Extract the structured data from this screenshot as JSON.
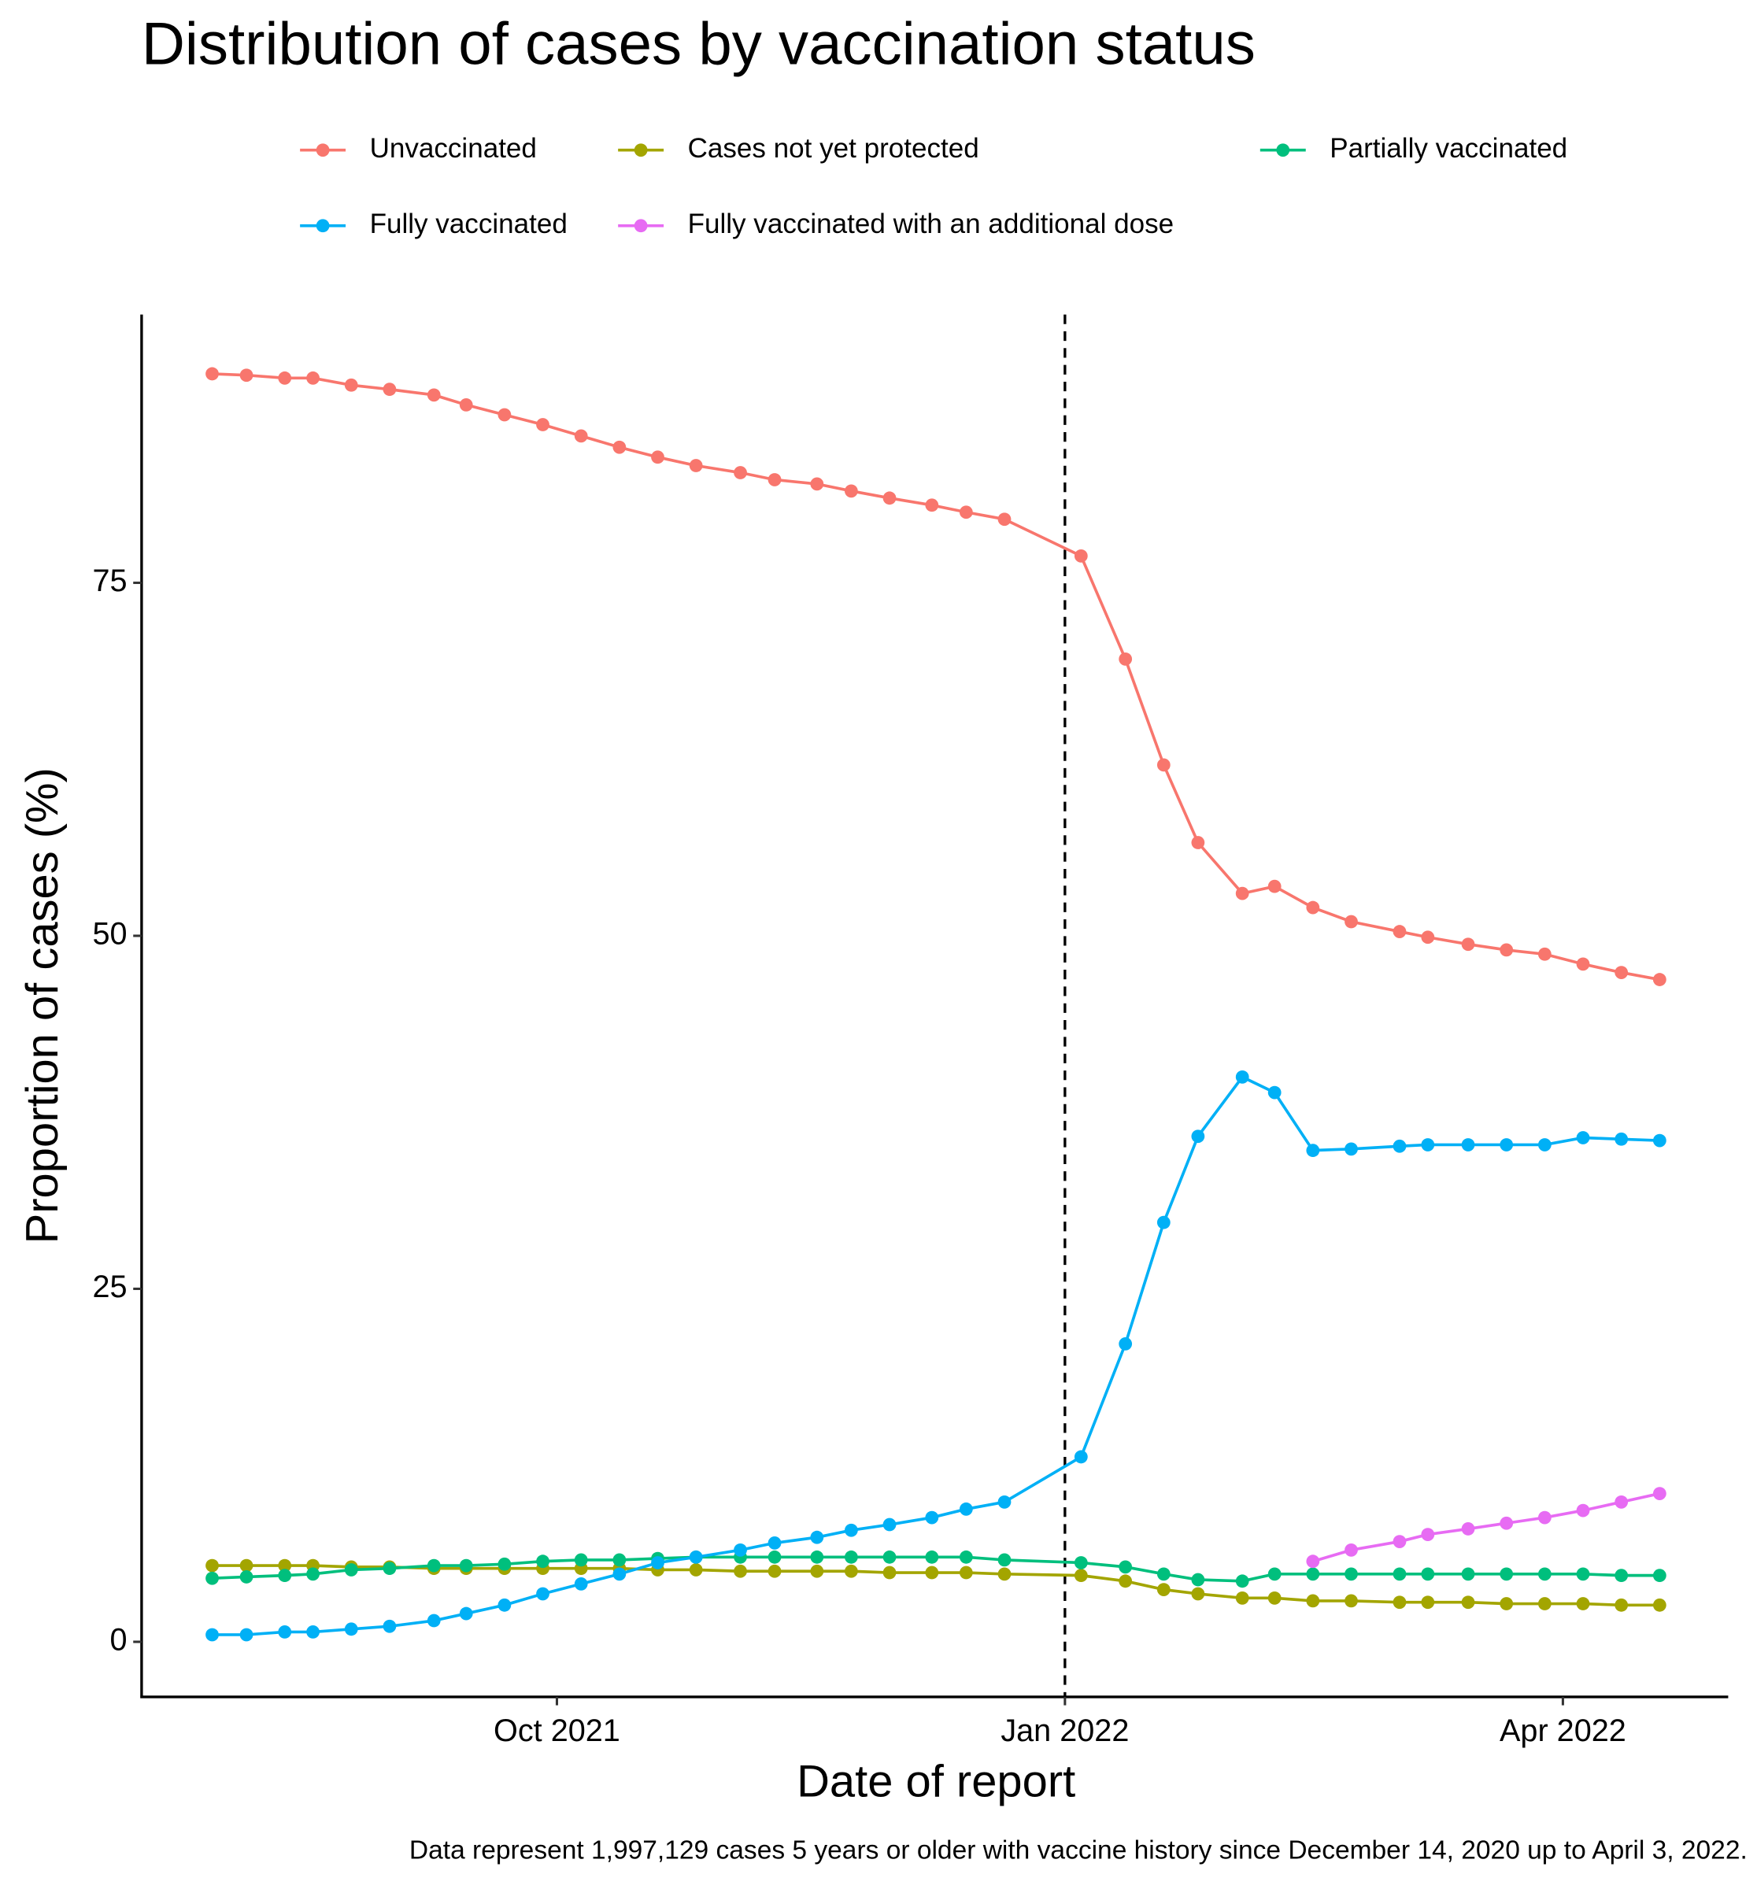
{
  "chart_data": {
    "type": "line",
    "title": "Distribution of cases by vaccination status",
    "xlabel": "Date of report",
    "ylabel": "Proportion of cases (%)",
    "caption": "Data represent 1,997,129 cases 5 years or older with vaccine history since December 14, 2020 up to April 3, 2022.",
    "x": [
      2021.577,
      2021.594,
      2021.613,
      2021.627,
      2021.646,
      2021.665,
      2021.687,
      2021.703,
      2021.722,
      2021.741,
      2021.76,
      2021.779,
      2021.798,
      2021.817,
      2021.839,
      2021.856,
      2021.877,
      2021.894,
      2021.913,
      2021.934,
      2021.951,
      2021.97,
      2022.008,
      2022.03,
      2022.049,
      2022.066,
      2022.088,
      2022.104,
      2022.123,
      2022.142,
      2022.166,
      2022.18,
      2022.2,
      2022.219,
      2022.238,
      2022.257,
      2022.276,
      2022.295
    ],
    "series": [
      {
        "name": "Unvaccinated",
        "color": "#F8766D",
        "values": [
          89.8,
          89.7,
          89.5,
          89.5,
          89.0,
          88.7,
          88.3,
          87.6,
          86.9,
          86.2,
          85.4,
          84.6,
          83.9,
          83.3,
          82.8,
          82.3,
          82.0,
          81.5,
          81.0,
          80.5,
          80.0,
          79.5,
          76.9,
          69.6,
          62.1,
          56.6,
          53.0,
          53.5,
          52.0,
          51.0,
          50.3,
          49.9,
          49.4,
          49.0,
          48.7,
          48.0,
          47.4,
          46.9
        ]
      },
      {
        "name": "Cases not yet protected",
        "color": "#A3A500",
        "values": [
          5.4,
          5.4,
          5.4,
          5.4,
          5.3,
          5.3,
          5.2,
          5.2,
          5.2,
          5.2,
          5.2,
          5.2,
          5.1,
          5.1,
          5.0,
          5.0,
          5.0,
          5.0,
          4.9,
          4.9,
          4.9,
          4.8,
          4.7,
          4.3,
          3.7,
          3.4,
          3.1,
          3.1,
          2.9,
          2.9,
          2.8,
          2.8,
          2.8,
          2.7,
          2.7,
          2.7,
          2.6,
          2.6
        ]
      },
      {
        "name": "Partially vaccinated",
        "color": "#00BF7D",
        "values": [
          4.5,
          4.6,
          4.7,
          4.8,
          5.1,
          5.2,
          5.4,
          5.4,
          5.5,
          5.7,
          5.8,
          5.8,
          5.9,
          6.0,
          6.0,
          6.0,
          6.0,
          6.0,
          6.0,
          6.0,
          6.0,
          5.8,
          5.6,
          5.3,
          4.8,
          4.4,
          4.3,
          4.8,
          4.8,
          4.8,
          4.8,
          4.8,
          4.8,
          4.8,
          4.8,
          4.8,
          4.7,
          4.7
        ]
      },
      {
        "name": "Fully vaccinated",
        "color": "#00B0F6",
        "values": [
          0.5,
          0.5,
          0.7,
          0.7,
          0.9,
          1.1,
          1.5,
          2.0,
          2.6,
          3.4,
          4.1,
          4.8,
          5.6,
          6.0,
          6.5,
          7.0,
          7.4,
          7.9,
          8.3,
          8.8,
          9.4,
          9.9,
          13.1,
          21.1,
          29.7,
          35.8,
          40.0,
          38.9,
          34.8,
          34.9,
          35.1,
          35.2,
          35.2,
          35.2,
          35.2,
          35.7,
          35.6,
          35.5
        ]
      },
      {
        "name": "Fully vaccinated with an additional dose",
        "color": "#E76BF3",
        "values": [
          null,
          null,
          null,
          null,
          null,
          null,
          null,
          null,
          null,
          null,
          null,
          null,
          null,
          null,
          null,
          null,
          null,
          null,
          null,
          null,
          null,
          null,
          null,
          null,
          null,
          null,
          null,
          null,
          5.7,
          6.5,
          7.1,
          7.6,
          8.0,
          8.4,
          8.8,
          9.3,
          9.9,
          10.5
        ]
      }
    ],
    "xlim": [
      2021.542,
      2022.329
    ],
    "xticks": [
      {
        "value": 2021.748,
        "label": "Oct 2021"
      },
      {
        "value": 2022.0,
        "label": "Jan 2022"
      },
      {
        "value": 2022.247,
        "label": "Apr 2022"
      }
    ],
    "ylim": [
      -3.9,
      94.0
    ],
    "yticks": [
      0,
      25,
      50,
      75
    ],
    "vline": 2022.0,
    "grid": false,
    "legend": "top"
  }
}
